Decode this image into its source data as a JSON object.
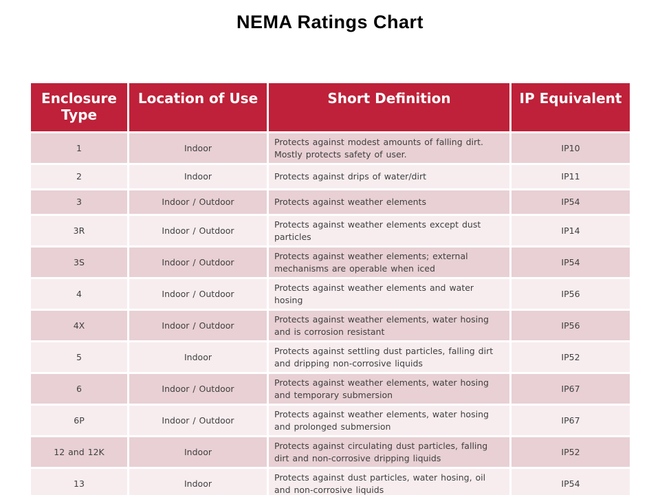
{
  "title": "NEMA Ratings Chart",
  "colors": {
    "header_bg": "#be2139",
    "header_text": "#ffffff",
    "row_dark": "#e8d0d4",
    "row_light": "#f7edef",
    "body_text": "#3f3f3f",
    "title_text": "#000000",
    "grid": "#ffffff"
  },
  "table": {
    "headers": [
      "Enclosure Type",
      "Location of Use",
      "Short Definition",
      "IP Equivalent"
    ],
    "rows": [
      {
        "type": "1",
        "location": "Indoor",
        "definition": "Protects against modest amounts of falling dirt. Mostly protects safety of user.",
        "ip": "IP10"
      },
      {
        "type": "2",
        "location": "Indoor",
        "definition": "Protects against drips of water/dirt",
        "ip": "IP11"
      },
      {
        "type": "3",
        "location": "Indoor / Outdoor",
        "definition": "Protects against weather elements",
        "ip": "IP54"
      },
      {
        "type": "3R",
        "location": "Indoor / Outdoor",
        "definition": "Protects against weather elements except dust particles",
        "ip": "IP14"
      },
      {
        "type": "3S",
        "location": "Indoor / Outdoor",
        "definition": "Protects against weather elements; external mechanisms are operable when iced",
        "ip": "IP54"
      },
      {
        "type": "4",
        "location": "Indoor / Outdoor",
        "definition": "Protects against weather elements and water hosing",
        "ip": "IP56"
      },
      {
        "type": "4X",
        "location": "Indoor / Outdoor",
        "definition": "Protects against weather elements, water hosing and is corrosion resistant",
        "ip": "IP56"
      },
      {
        "type": "5",
        "location": "Indoor",
        "definition": "Protects against settling dust particles, falling dirt and dripping non-corrosive liquids",
        "ip": "IP52"
      },
      {
        "type": "6",
        "location": "Indoor / Outdoor",
        "definition": "Protects against weather elements, water hosing and temporary submersion",
        "ip": "IP67"
      },
      {
        "type": "6P",
        "location": "Indoor / Outdoor",
        "definition": "Protects against weather elements, water hosing and prolonged submersion",
        "ip": "IP67"
      },
      {
        "type": "12 and 12K",
        "location": "Indoor",
        "definition": "Protects against circulating dust particles, falling dirt and non-corrosive dripping liquids",
        "ip": "IP52"
      },
      {
        "type": "13",
        "location": "Indoor",
        "definition": "Protects against dust particles, water hosing, oil and non-corrosive liquids",
        "ip": "IP54"
      }
    ]
  }
}
